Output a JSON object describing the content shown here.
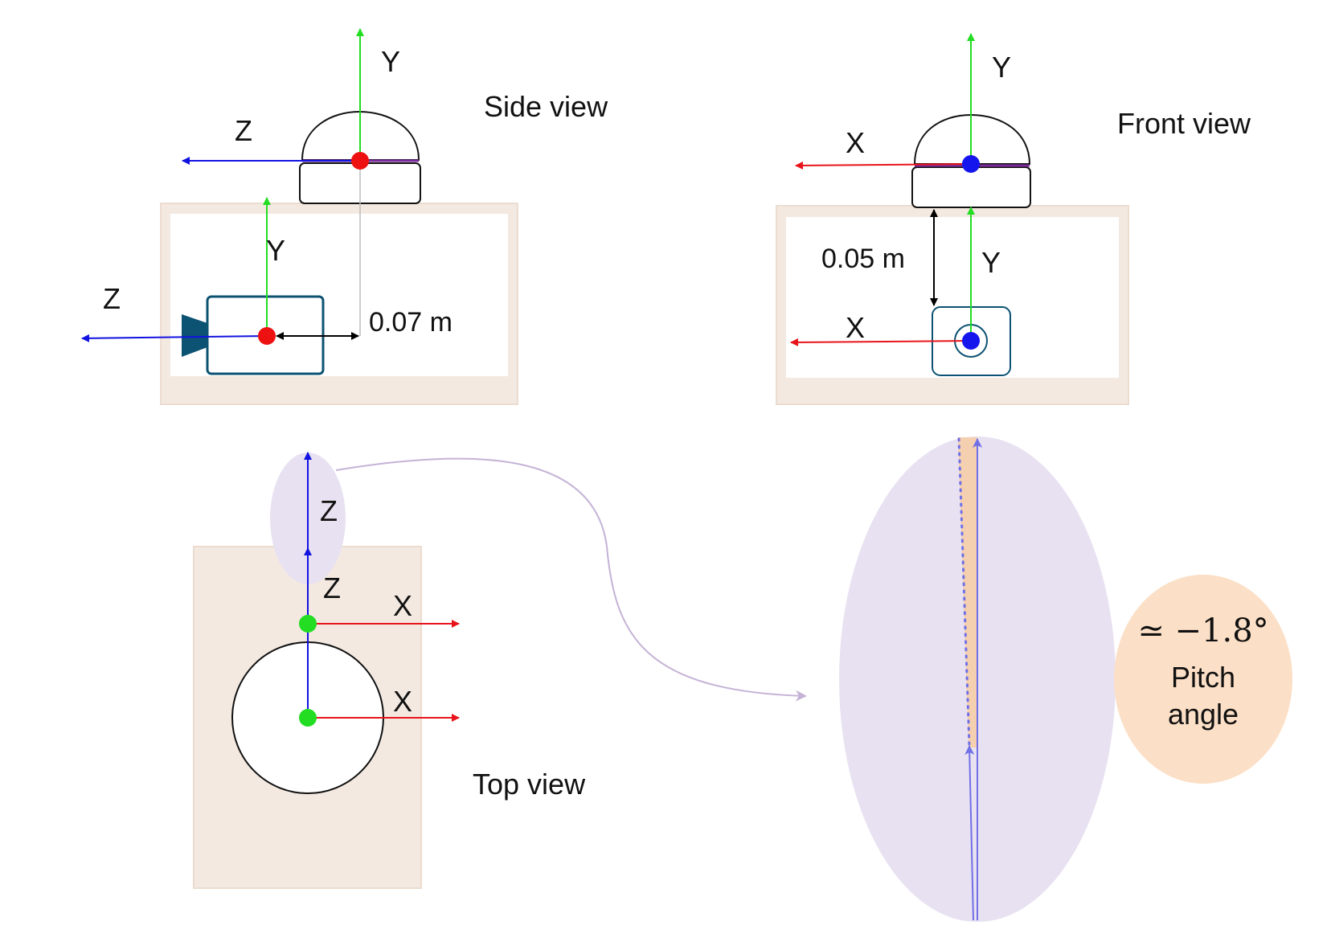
{
  "labels": {
    "side_view": "Side view",
    "front_view": "Front view",
    "top_view": "Top view",
    "axis_x": "X",
    "axis_y": "Y",
    "axis_z": "Z",
    "dist_side": "0.07 m",
    "dist_front": "0.05 m",
    "angle_value": "≃ −1.8°",
    "angle_label_1": "Pitch",
    "angle_label_2": "angle"
  },
  "colors": {
    "x_axis": "#e8141b",
    "y_axis": "#22dd22",
    "z_axis": "#1212e0",
    "mount_fill": "#f3e9e1",
    "mount_stroke": "#ecdcd0",
    "camera": "#0c5272",
    "lidar_origin_side": "#ee1111",
    "origin_front": "#1515ee",
    "origin_top": "#22dd22",
    "zoom_fill": "#e8e1f1",
    "zoom_arrow": "#7070e6",
    "connector": "#c5b3d6",
    "angle_bubble": "#fbdfc6",
    "angle_wedge": "#f4cfb0"
  },
  "icons": [
    "camera-icon",
    "lidar-icon",
    "lens-icon"
  ]
}
